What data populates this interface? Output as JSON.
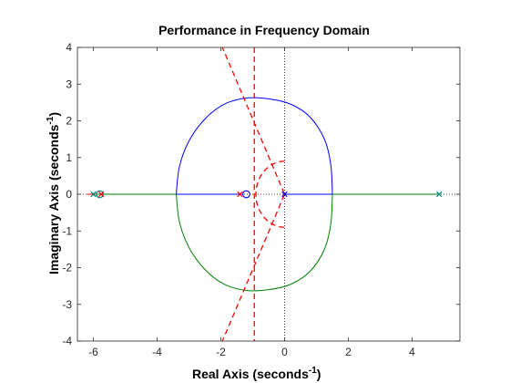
{
  "chart_data": {
    "type": "root-locus",
    "title": "Performance in Frequency Domain",
    "xlabel": {
      "text": "Real Axis (seconds",
      "sup": "-1",
      "close": ")"
    },
    "ylabel": {
      "text": "Imaginary Axis (seconds",
      "sup": "-1",
      "close": ")"
    },
    "xlim": [
      -6.5,
      5.5
    ],
    "ylim": [
      -4,
      4
    ],
    "xticks": [
      -6,
      -4,
      -2,
      0,
      2,
      4
    ],
    "yticks": [
      -4,
      -3,
      -2,
      -1,
      0,
      1,
      2,
      3,
      4
    ],
    "xtick_labels": [
      "-6",
      "-4",
      "-2",
      "0",
      "2",
      "4"
    ],
    "ytick_labels": [
      "-4",
      "-3",
      "-2",
      "-1",
      "0",
      "1",
      "2",
      "3",
      "4"
    ],
    "grid": false,
    "box": true,
    "colors": {
      "blue": "#0000ff",
      "green": "#008000",
      "red": "#ff0000",
      "teal": "#008080",
      "axis": "#262626",
      "zero_line": "#000000"
    },
    "branches": [
      {
        "color": "#0000ff",
        "points": [
          [
            -3.4,
            0
          ],
          [
            -3.3,
            0.75
          ],
          [
            -3.0,
            1.45
          ],
          [
            -2.5,
            2.05
          ],
          [
            -1.9,
            2.45
          ],
          [
            -1.2,
            2.62
          ],
          [
            -0.5,
            2.6
          ],
          [
            0.2,
            2.45
          ],
          [
            0.8,
            2.1
          ],
          [
            1.25,
            1.5
          ],
          [
            1.45,
            0.8
          ],
          [
            1.5,
            0
          ]
        ]
      },
      {
        "color": "#008000",
        "points": [
          [
            -3.4,
            0
          ],
          [
            -3.3,
            -0.75
          ],
          [
            -3.0,
            -1.45
          ],
          [
            -2.5,
            -2.05
          ],
          [
            -1.9,
            -2.45
          ],
          [
            -1.2,
            -2.62
          ],
          [
            -0.5,
            -2.6
          ],
          [
            0.2,
            -2.45
          ],
          [
            0.8,
            -2.1
          ],
          [
            1.25,
            -1.5
          ],
          [
            1.45,
            -0.8
          ],
          [
            1.5,
            0
          ]
        ]
      },
      {
        "color": "#0000ff",
        "points": [
          [
            -1.35,
            0
          ],
          [
            -3.4,
            0
          ]
        ]
      },
      {
        "color": "#0000ff",
        "points": [
          [
            0,
            0
          ],
          [
            1.5,
            0
          ]
        ]
      },
      {
        "color": "#008000",
        "points": [
          [
            -5.95,
            0
          ],
          [
            -3.4,
            0
          ]
        ]
      },
      {
        "color": "#008000",
        "points": [
          [
            1.5,
            0
          ],
          [
            4.85,
            0
          ]
        ]
      },
      {
        "color": "#ff0000",
        "points": [
          [
            -6.2,
            0
          ],
          [
            -5.95,
            0
          ]
        ]
      }
    ],
    "poles": [
      {
        "x": -6.0,
        "y": 0,
        "color": "#008080"
      },
      {
        "x": -5.75,
        "y": 0,
        "color": "#ff0000"
      },
      {
        "x": -1.4,
        "y": 0,
        "color": "#ff0000"
      },
      {
        "x": 0.0,
        "y": 0,
        "color": "#0000ff"
      },
      {
        "x": 4.85,
        "y": 0,
        "color": "#008080"
      }
    ],
    "zeros": [
      {
        "x": -5.8,
        "y": 0,
        "color": "#008080"
      },
      {
        "x": -1.2,
        "y": 0,
        "color": "#0000ff"
      }
    ],
    "constraints": {
      "color": "#ff0000",
      "vertical_line_x": -0.95,
      "damping_ray_slope": 2.05,
      "arc_radius": 0.9
    },
    "zero_lines": {
      "x0": 0,
      "y0": 0,
      "style": "dotted"
    }
  }
}
